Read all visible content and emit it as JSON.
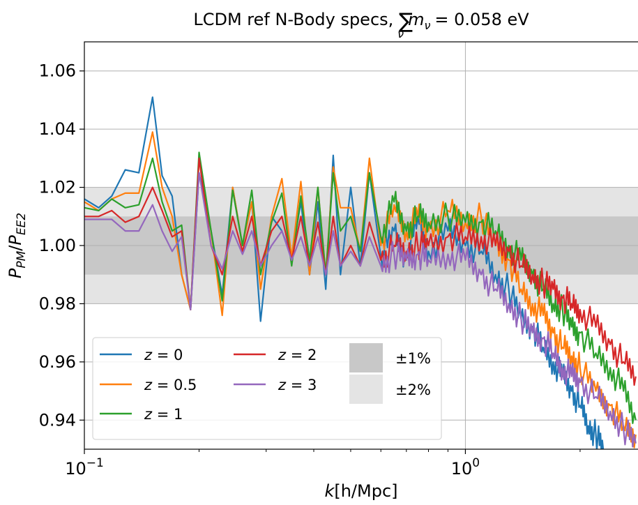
{
  "chart_data": {
    "type": "line",
    "title_prefix": "LCDM ref N-Body specs, ",
    "title_value": "= 0.058 eV",
    "xlabel_var": "k",
    "xlabel_unit": "[h/Mpc]",
    "ylabel": "P_PM/P_EE2",
    "xscale": "log",
    "xlim": [
      0.1,
      2.85
    ],
    "ylim": [
      0.93,
      1.07
    ],
    "grid": true,
    "x_tick_labels": [
      {
        "value": 0.1,
        "base": "10",
        "exp": "−1"
      },
      {
        "value": 1.0,
        "base": "10",
        "exp": "0"
      }
    ],
    "y_ticks": [
      0.94,
      0.96,
      0.98,
      1.0,
      1.02,
      1.04,
      1.06
    ],
    "y_tick_labels": [
      "0.94",
      "0.96",
      "0.98",
      "1.00",
      "1.02",
      "1.04",
      "1.06"
    ],
    "bands": [
      {
        "label": "±1%",
        "range": [
          0.99,
          1.01
        ],
        "color": "#c8c8c8"
      },
      {
        "label": "±2%",
        "range": [
          0.98,
          1.02
        ],
        "color": "#e4e4e4"
      }
    ],
    "legend_position": "lower-left",
    "series": [
      {
        "name": "z = 0",
        "z": "0",
        "color": "#1f77b4",
        "points": [
          [
            0.1,
            1.016
          ],
          [
            0.109,
            1.013
          ],
          [
            0.118,
            1.017
          ],
          [
            0.128,
            1.026
          ],
          [
            0.139,
            1.025
          ],
          [
            0.151,
            1.051
          ],
          [
            0.16,
            1.024
          ],
          [
            0.17,
            1.017
          ],
          [
            0.18,
            0.99
          ],
          [
            0.19,
            0.978
          ],
          [
            0.2,
            1.025
          ],
          [
            0.215,
            1.005
          ],
          [
            0.23,
            0.983
          ],
          [
            0.245,
            1.02
          ],
          [
            0.26,
            1.0
          ],
          [
            0.275,
            1.015
          ],
          [
            0.29,
            0.974
          ],
          [
            0.31,
            1.01
          ],
          [
            0.33,
            1.005
          ],
          [
            0.35,
            0.996
          ],
          [
            0.37,
            1.015
          ],
          [
            0.39,
            0.99
          ],
          [
            0.41,
            1.015
          ],
          [
            0.43,
            0.985
          ],
          [
            0.45,
            1.031
          ],
          [
            0.47,
            0.99
          ],
          [
            0.5,
            1.02
          ],
          [
            0.53,
            0.993
          ],
          [
            0.56,
            1.025
          ],
          [
            0.6,
            0.996
          ],
          [
            0.65,
            1.005
          ],
          [
            0.7,
            0.995
          ],
          [
            0.75,
            1.01
          ],
          [
            0.8,
            0.998
          ],
          [
            0.9,
            1.005
          ],
          [
            1.0,
            1.0
          ],
          [
            1.1,
            0.998
          ],
          [
            1.2,
            0.99
          ],
          [
            1.3,
            0.985
          ],
          [
            1.4,
            0.975
          ],
          [
            1.5,
            0.972
          ],
          [
            1.6,
            0.965
          ],
          [
            1.7,
            0.96
          ],
          [
            1.8,
            0.955
          ],
          [
            1.9,
            0.95
          ],
          [
            2.0,
            0.945
          ],
          [
            2.1,
            0.938
          ],
          [
            2.2,
            0.935
          ],
          [
            2.3,
            0.93
          ]
        ]
      },
      {
        "name": "z = 0.5",
        "z": "0.5",
        "color": "#ff7f0e",
        "points": [
          [
            0.1,
            1.015
          ],
          [
            0.109,
            1.012
          ],
          [
            0.118,
            1.016
          ],
          [
            0.128,
            1.018
          ],
          [
            0.139,
            1.018
          ],
          [
            0.151,
            1.039
          ],
          [
            0.16,
            1.02
          ],
          [
            0.17,
            1.01
          ],
          [
            0.18,
            0.99
          ],
          [
            0.19,
            0.978
          ],
          [
            0.2,
            1.03
          ],
          [
            0.215,
            1.005
          ],
          [
            0.23,
            0.976
          ],
          [
            0.245,
            1.02
          ],
          [
            0.26,
            1.0
          ],
          [
            0.275,
            1.015
          ],
          [
            0.29,
            0.985
          ],
          [
            0.31,
            1.01
          ],
          [
            0.33,
            1.023
          ],
          [
            0.35,
            0.996
          ],
          [
            0.37,
            1.022
          ],
          [
            0.39,
            0.99
          ],
          [
            0.41,
            1.02
          ],
          [
            0.43,
            0.99
          ],
          [
            0.45,
            1.027
          ],
          [
            0.47,
            1.013
          ],
          [
            0.5,
            1.013
          ],
          [
            0.53,
            0.998
          ],
          [
            0.56,
            1.03
          ],
          [
            0.6,
            1.0
          ],
          [
            0.65,
            1.014
          ],
          [
            0.7,
            1.005
          ],
          [
            0.75,
            1.01
          ],
          [
            0.8,
            1.005
          ],
          [
            0.9,
            1.012
          ],
          [
            1.0,
            1.008
          ],
          [
            1.1,
            1.01
          ],
          [
            1.2,
            1.0
          ],
          [
            1.3,
            0.995
          ],
          [
            1.4,
            0.985
          ],
          [
            1.5,
            0.98
          ],
          [
            1.6,
            0.976
          ],
          [
            1.7,
            0.97
          ],
          [
            1.8,
            0.965
          ],
          [
            1.9,
            0.962
          ],
          [
            2.0,
            0.958
          ],
          [
            2.2,
            0.95
          ],
          [
            2.4,
            0.945
          ],
          [
            2.6,
            0.938
          ],
          [
            2.8,
            0.935
          ]
        ]
      },
      {
        "name": "z = 1",
        "z": "1",
        "color": "#2ca02c",
        "points": [
          [
            0.1,
            1.013
          ],
          [
            0.109,
            1.012
          ],
          [
            0.118,
            1.016
          ],
          [
            0.128,
            1.013
          ],
          [
            0.139,
            1.014
          ],
          [
            0.151,
            1.03
          ],
          [
            0.16,
            1.015
          ],
          [
            0.17,
            1.005
          ],
          [
            0.18,
            1.007
          ],
          [
            0.19,
            0.978
          ],
          [
            0.2,
            1.032
          ],
          [
            0.215,
            1.005
          ],
          [
            0.23,
            0.981
          ],
          [
            0.245,
            1.019
          ],
          [
            0.26,
            1.0
          ],
          [
            0.275,
            1.019
          ],
          [
            0.29,
            0.99
          ],
          [
            0.31,
            1.008
          ],
          [
            0.33,
            1.018
          ],
          [
            0.35,
            0.993
          ],
          [
            0.37,
            1.017
          ],
          [
            0.39,
            0.995
          ],
          [
            0.41,
            1.02
          ],
          [
            0.43,
            0.99
          ],
          [
            0.45,
            1.025
          ],
          [
            0.47,
            1.005
          ],
          [
            0.5,
            1.01
          ],
          [
            0.53,
            0.998
          ],
          [
            0.56,
            1.025
          ],
          [
            0.6,
            1.003
          ],
          [
            0.65,
            1.015
          ],
          [
            0.7,
            1.005
          ],
          [
            0.75,
            1.01
          ],
          [
            0.8,
            1.008
          ],
          [
            0.9,
            1.01
          ],
          [
            1.0,
            1.008
          ],
          [
            1.1,
            1.008
          ],
          [
            1.2,
            1.005
          ],
          [
            1.3,
            1.0
          ],
          [
            1.4,
            0.995
          ],
          [
            1.5,
            0.99
          ],
          [
            1.6,
            0.985
          ],
          [
            1.7,
            0.98
          ],
          [
            1.8,
            0.978
          ],
          [
            1.9,
            0.972
          ],
          [
            2.0,
            0.97
          ],
          [
            2.2,
            0.963
          ],
          [
            2.4,
            0.958
          ],
          [
            2.6,
            0.95
          ],
          [
            2.8,
            0.94
          ]
        ]
      },
      {
        "name": "z = 2",
        "z": "2",
        "color": "#d62728",
        "points": [
          [
            0.1,
            1.01
          ],
          [
            0.109,
            1.01
          ],
          [
            0.118,
            1.012
          ],
          [
            0.128,
            1.008
          ],
          [
            0.139,
            1.01
          ],
          [
            0.151,
            1.02
          ],
          [
            0.16,
            1.012
          ],
          [
            0.17,
            1.003
          ],
          [
            0.18,
            1.005
          ],
          [
            0.19,
            0.978
          ],
          [
            0.2,
            1.03
          ],
          [
            0.215,
            1.0
          ],
          [
            0.23,
            0.99
          ],
          [
            0.245,
            1.01
          ],
          [
            0.26,
            0.998
          ],
          [
            0.275,
            1.01
          ],
          [
            0.29,
            0.993
          ],
          [
            0.31,
            1.005
          ],
          [
            0.33,
            1.01
          ],
          [
            0.35,
            0.995
          ],
          [
            0.37,
            1.01
          ],
          [
            0.39,
            0.993
          ],
          [
            0.41,
            1.008
          ],
          [
            0.43,
            0.99
          ],
          [
            0.45,
            1.01
          ],
          [
            0.47,
            0.993
          ],
          [
            0.5,
            1.0
          ],
          [
            0.53,
            0.993
          ],
          [
            0.56,
            1.008
          ],
          [
            0.6,
            0.995
          ],
          [
            0.65,
            1.0
          ],
          [
            0.7,
            0.998
          ],
          [
            0.75,
            1.0
          ],
          [
            0.8,
            1.0
          ],
          [
            0.9,
            1.003
          ],
          [
            1.0,
            1.003
          ],
          [
            1.1,
            1.003
          ],
          [
            1.2,
            1.0
          ],
          [
            1.3,
            0.998
          ],
          [
            1.4,
            0.993
          ],
          [
            1.5,
            0.99
          ],
          [
            1.6,
            0.987
          ],
          [
            1.7,
            0.985
          ],
          [
            1.8,
            0.982
          ],
          [
            1.9,
            0.98
          ],
          [
            2.0,
            0.978
          ],
          [
            2.2,
            0.972
          ],
          [
            2.4,
            0.966
          ],
          [
            2.6,
            0.96
          ],
          [
            2.8,
            0.955
          ]
        ]
      },
      {
        "name": "z = 3",
        "z": "3",
        "color": "#9467bd",
        "points": [
          [
            0.1,
            1.009
          ],
          [
            0.109,
            1.009
          ],
          [
            0.118,
            1.009
          ],
          [
            0.128,
            1.005
          ],
          [
            0.139,
            1.005
          ],
          [
            0.151,
            1.014
          ],
          [
            0.16,
            1.005
          ],
          [
            0.17,
            0.998
          ],
          [
            0.18,
            1.003
          ],
          [
            0.19,
            0.978
          ],
          [
            0.2,
            1.025
          ],
          [
            0.215,
            1.0
          ],
          [
            0.23,
            0.992
          ],
          [
            0.245,
            1.005
          ],
          [
            0.26,
            0.997
          ],
          [
            0.275,
            1.005
          ],
          [
            0.29,
            0.993
          ],
          [
            0.31,
            1.0
          ],
          [
            0.33,
            1.005
          ],
          [
            0.35,
            0.995
          ],
          [
            0.37,
            1.003
          ],
          [
            0.39,
            0.993
          ],
          [
            0.41,
            1.003
          ],
          [
            0.43,
            0.99
          ],
          [
            0.45,
            1.005
          ],
          [
            0.47,
            0.993
          ],
          [
            0.5,
            0.998
          ],
          [
            0.53,
            0.993
          ],
          [
            0.56,
            1.003
          ],
          [
            0.6,
            0.993
          ],
          [
            0.65,
            0.997
          ],
          [
            0.7,
            0.995
          ],
          [
            0.75,
            0.997
          ],
          [
            0.8,
            0.995
          ],
          [
            0.9,
            0.997
          ],
          [
            1.0,
            0.995
          ],
          [
            1.1,
            0.99
          ],
          [
            1.2,
            0.985
          ],
          [
            1.3,
            0.98
          ],
          [
            1.4,
            0.975
          ],
          [
            1.5,
            0.97
          ],
          [
            1.6,
            0.968
          ],
          [
            1.7,
            0.963
          ],
          [
            1.8,
            0.958
          ],
          [
            1.9,
            0.955
          ],
          [
            2.0,
            0.953
          ],
          [
            2.2,
            0.948
          ],
          [
            2.4,
            0.943
          ],
          [
            2.6,
            0.937
          ],
          [
            2.8,
            0.932
          ]
        ]
      }
    ]
  }
}
